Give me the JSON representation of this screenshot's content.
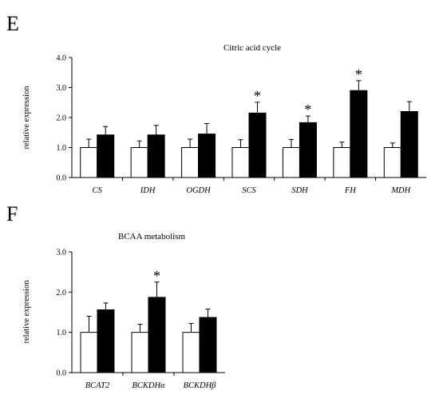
{
  "panels": [
    {
      "letter": "E",
      "chart_data": {
        "type": "bar",
        "title": "Citric acid cycle",
        "ylabel": "relative expression",
        "xlabel": "",
        "ylim": [
          0,
          4.0
        ],
        "yticks": [
          "0.0",
          "1.0",
          "2.0",
          "3.0",
          "4.0"
        ],
        "grid": false,
        "categories": [
          "CS",
          "IDH",
          "OGDH",
          "SCS",
          "SDH",
          "FH",
          "MDH"
        ],
        "series": [
          {
            "fill": "#ffffff",
            "values": [
              1.0,
              1.0,
              1.0,
              1.0,
              1.0,
              1.0,
              1.0
            ],
            "errors": [
              0.28,
              0.22,
              0.28,
              0.26,
              0.27,
              0.18,
              0.15
            ]
          },
          {
            "fill": "#000000",
            "values": [
              1.42,
              1.42,
              1.45,
              2.15,
              1.83,
              2.9,
              2.2
            ],
            "errors": [
              0.28,
              0.32,
              0.35,
              0.36,
              0.22,
              0.33,
              0.33
            ]
          }
        ],
        "significance": {
          "marker": "*",
          "categories": [
            "SCS",
            "SDH",
            "FH"
          ]
        }
      }
    },
    {
      "letter": "F",
      "chart_data": {
        "type": "bar",
        "title": "BCAA metabolism",
        "ylabel": "relative expression",
        "xlabel": "",
        "ylim": [
          0,
          3.0
        ],
        "yticks": [
          "0.0",
          "1.0",
          "2.0",
          "3.0"
        ],
        "grid": false,
        "categories": [
          "BCAT2",
          "BCKDHα",
          "BCKDHβ"
        ],
        "series": [
          {
            "fill": "#ffffff",
            "values": [
              1.0,
              1.0,
              1.0
            ],
            "errors": [
              0.4,
              0.2,
              0.22
            ]
          },
          {
            "fill": "#000000",
            "values": [
              1.56,
              1.87,
              1.37
            ],
            "errors": [
              0.17,
              0.38,
              0.21
            ]
          }
        ],
        "significance": {
          "marker": "*",
          "categories": [
            "BCKDHα"
          ]
        }
      }
    }
  ]
}
